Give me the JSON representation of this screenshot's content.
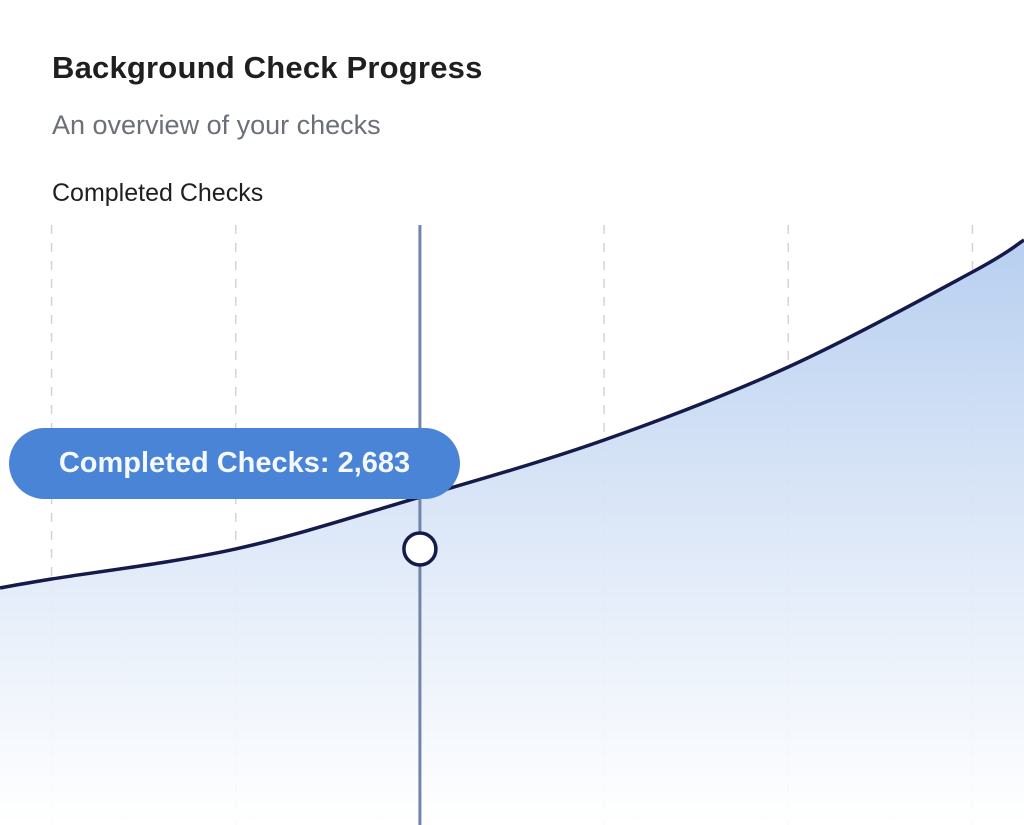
{
  "header": {
    "title": "Background Check Progress",
    "subtitle": "An overview of your checks"
  },
  "chart_data": {
    "type": "area",
    "title": "Background Check Progress",
    "subtitle": "An overview of your checks",
    "series": [
      {
        "name": "Completed Checks",
        "x": [
          -0.28,
          0,
          1,
          2,
          3,
          4,
          5,
          5.28
        ],
        "values": [
          2304,
          2391,
          2683,
          3188,
          3742,
          4452,
          5375,
          5686
        ]
      }
    ],
    "xlim": [
      -0.28,
      5.28
    ],
    "ylim": [
      0,
      5832
    ],
    "grid": "vertical-dashed",
    "active_point": {
      "index": 2,
      "value": 2683
    },
    "tooltip": {
      "label": "Completed Checks: 2,683"
    },
    "colors": {
      "line": "#141a4a",
      "fill_top": "#b8cff0",
      "fill_bottom": "#ffffff",
      "tooltip": "#4a84d6",
      "crosshair": "#7484a8",
      "grid": "#d4d4d8"
    }
  }
}
